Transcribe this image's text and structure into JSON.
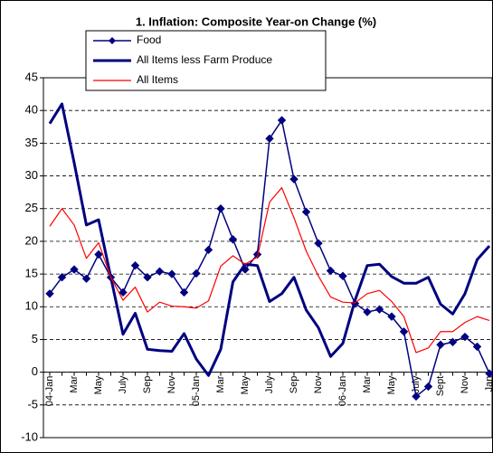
{
  "chart_data": {
    "type": "line",
    "title": "1. Inflation: Composite Year-on Change (%)",
    "categories": [
      "04-Jan",
      null,
      "Mar",
      null,
      "May",
      null,
      "July",
      null,
      "Sep",
      null,
      "Nov",
      null,
      "05-Jan",
      null,
      "Mar",
      null,
      "May",
      null,
      "July",
      null,
      "Sep",
      null,
      "Nov",
      null,
      "06-Jan",
      null,
      "Mar",
      null,
      "May",
      null,
      "July",
      null,
      "Sept",
      null,
      "Nov",
      null,
      "Jan"
    ],
    "series": [
      {
        "name": "Food",
        "color": "#000080",
        "marker": "diamond",
        "line_width": 1.5,
        "values": [
          12,
          14.5,
          15.7,
          14.3,
          18,
          14.5,
          12.2,
          16.3,
          14.5,
          15.4,
          15,
          12.2,
          15.1,
          18.7,
          25,
          20.3,
          15.7,
          18,
          35.7,
          38.5,
          29.5,
          24.5,
          19.7,
          15.5,
          14.7,
          10.5,
          9.2,
          9.6,
          8.5,
          6.2,
          -3.7,
          -2.2,
          4.2,
          4.6,
          5.4,
          3.9,
          -0.2
        ]
      },
      {
        "name": "All Items less Farm Produce",
        "color": "#000080",
        "line_width": 3,
        "values": [
          38,
          41,
          32,
          22.5,
          23.3,
          14.5,
          5.8,
          9,
          3.5,
          3.3,
          3.2,
          5.9,
          2,
          -0.5,
          3.5,
          13.8,
          16.5,
          16.3,
          10.8,
          12,
          14.5,
          9.5,
          6.8,
          2.4,
          4.4,
          11,
          16.3,
          16.5,
          14.6,
          13.6,
          13.6,
          14.5,
          10.4,
          8.9,
          12,
          17.2,
          19.3
        ]
      },
      {
        "name": "All Items",
        "color": "#ff0000",
        "line_width": 1.2,
        "values": [
          22.3,
          25,
          22.5,
          17.4,
          19.8,
          14.5,
          11,
          13,
          9.2,
          10.7,
          10.1,
          10,
          9.8,
          10.9,
          16.2,
          17.8,
          16.5,
          17.6,
          26,
          28.2,
          23.6,
          18.5,
          14.7,
          11.5,
          10.7,
          10.6,
          12,
          12.5,
          10.8,
          8.5,
          3,
          3.7,
          6.2,
          6.2,
          7.6,
          8.5,
          7.9
        ]
      }
    ],
    "ylim": [
      -10,
      45
    ],
    "yticks": [
      -10,
      -5,
      0,
      5,
      10,
      15,
      20,
      25,
      30,
      35,
      40,
      45
    ],
    "grid": true,
    "legend_position": "top-left"
  }
}
